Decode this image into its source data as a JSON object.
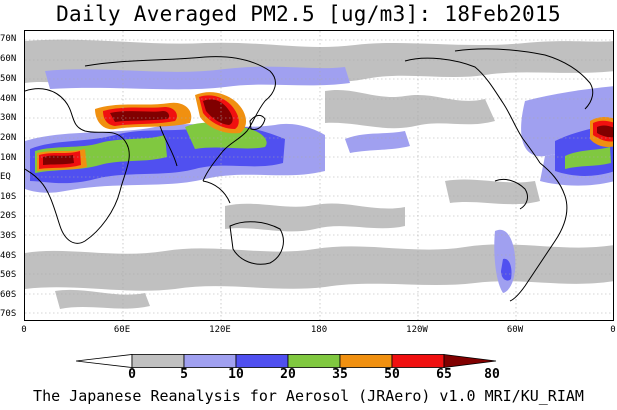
{
  "title": "Daily Averaged PM2.5 [ug/m3]: 18Feb2015",
  "footer": "The Japanese Reanalysis for Aerosol (JRAero) v1.0 MRI/KU_RIAM",
  "lat_labels": [
    "70N",
    "60N",
    "50N",
    "40N",
    "30N",
    "20N",
    "10N",
    "EQ",
    "10S",
    "20S",
    "30S",
    "40S",
    "50S",
    "60S",
    "70S"
  ],
  "lon_labels": [
    "0",
    "60E",
    "120E",
    "180",
    "120W",
    "60W",
    "0"
  ],
  "colorbar": {
    "levels": [
      "0",
      "5",
      "10",
      "20",
      "35",
      "50",
      "65",
      "80"
    ],
    "colors": [
      "#ffffff",
      "#c0c0c0",
      "#a0a0f0",
      "#5050f0",
      "#80c840",
      "#f09010",
      "#f01010",
      "#800000"
    ]
  }
}
